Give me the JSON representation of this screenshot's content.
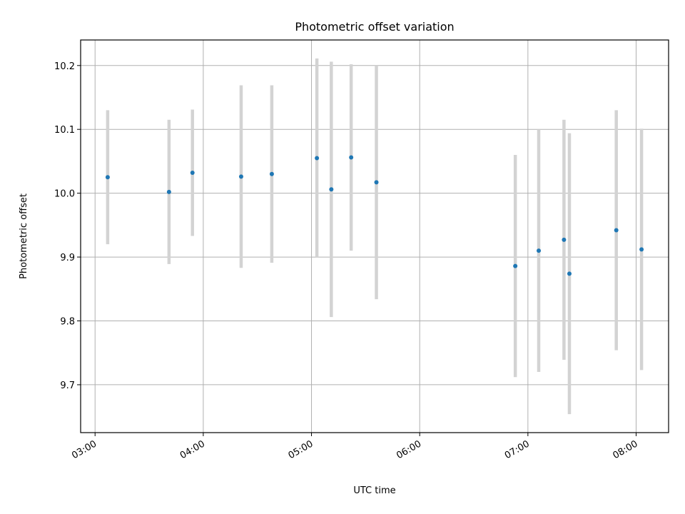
{
  "chart_data": {
    "type": "scatter",
    "title": "Photometric offset variation",
    "xlabel": "UTC time",
    "ylabel": "Photometric offset",
    "x_ticks": [
      "03:00",
      "04:00",
      "05:00",
      "06:00",
      "07:00",
      "08:00"
    ],
    "y_ticks": [
      "9.7",
      "9.8",
      "9.9",
      "10.0",
      "10.1",
      "10.2"
    ],
    "xlim": [
      "02:52",
      "08:18"
    ],
    "ylim": [
      9.625,
      10.24
    ],
    "grid": true,
    "marker_color": "#1f77b4",
    "errorbar_color": "#d3d3d3",
    "series": [
      {
        "x": [
          "03:07",
          "03:41",
          "03:54",
          "04:21",
          "04:38",
          "05:03",
          "05:11",
          "05:22",
          "05:36",
          "06:53",
          "07:06",
          "07:20",
          "07:23",
          "07:49",
          "08:03"
        ],
        "y": [
          10.025,
          10.002,
          10.032,
          10.026,
          10.03,
          10.055,
          10.006,
          10.056,
          10.017,
          9.886,
          9.91,
          9.927,
          9.874,
          9.942,
          9.912
        ],
        "err": [
          0.105,
          0.113,
          0.099,
          0.143,
          0.139,
          0.156,
          0.2,
          0.146,
          0.183,
          0.174,
          0.19,
          0.188,
          0.22,
          0.188,
          0.189
        ]
      }
    ]
  }
}
